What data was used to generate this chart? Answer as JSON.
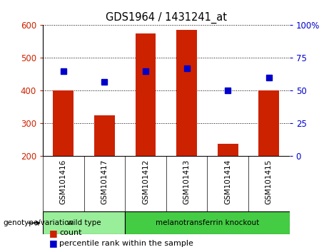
{
  "title": "GDS1964 / 1431241_at",
  "samples": [
    "GSM101416",
    "GSM101417",
    "GSM101412",
    "GSM101413",
    "GSM101414",
    "GSM101415"
  ],
  "counts": [
    400,
    325,
    575,
    585,
    238,
    400
  ],
  "percentile_ranks": [
    65,
    57,
    65,
    67,
    50,
    60
  ],
  "ylim_left": [
    200,
    600
  ],
  "ylim_right": [
    0,
    100
  ],
  "bar_color": "#cc2200",
  "dot_color": "#0000cc",
  "plot_bg": "#ffffff",
  "label_color_left": "#cc2200",
  "label_color_right": "#0000cc",
  "sample_bg": "#cccccc",
  "groups": [
    {
      "label": "wild type",
      "start": 0,
      "end": 1,
      "color": "#99ee99"
    },
    {
      "label": "melanotransferrin knockout",
      "start": 2,
      "end": 5,
      "color": "#44cc44"
    }
  ],
  "genotype_label": "genotype/variation",
  "legend_count": "count",
  "legend_percentile": "percentile rank within the sample",
  "yticks_left": [
    200,
    300,
    400,
    500,
    600
  ],
  "yticks_right": [
    0,
    25,
    50,
    75,
    100
  ]
}
